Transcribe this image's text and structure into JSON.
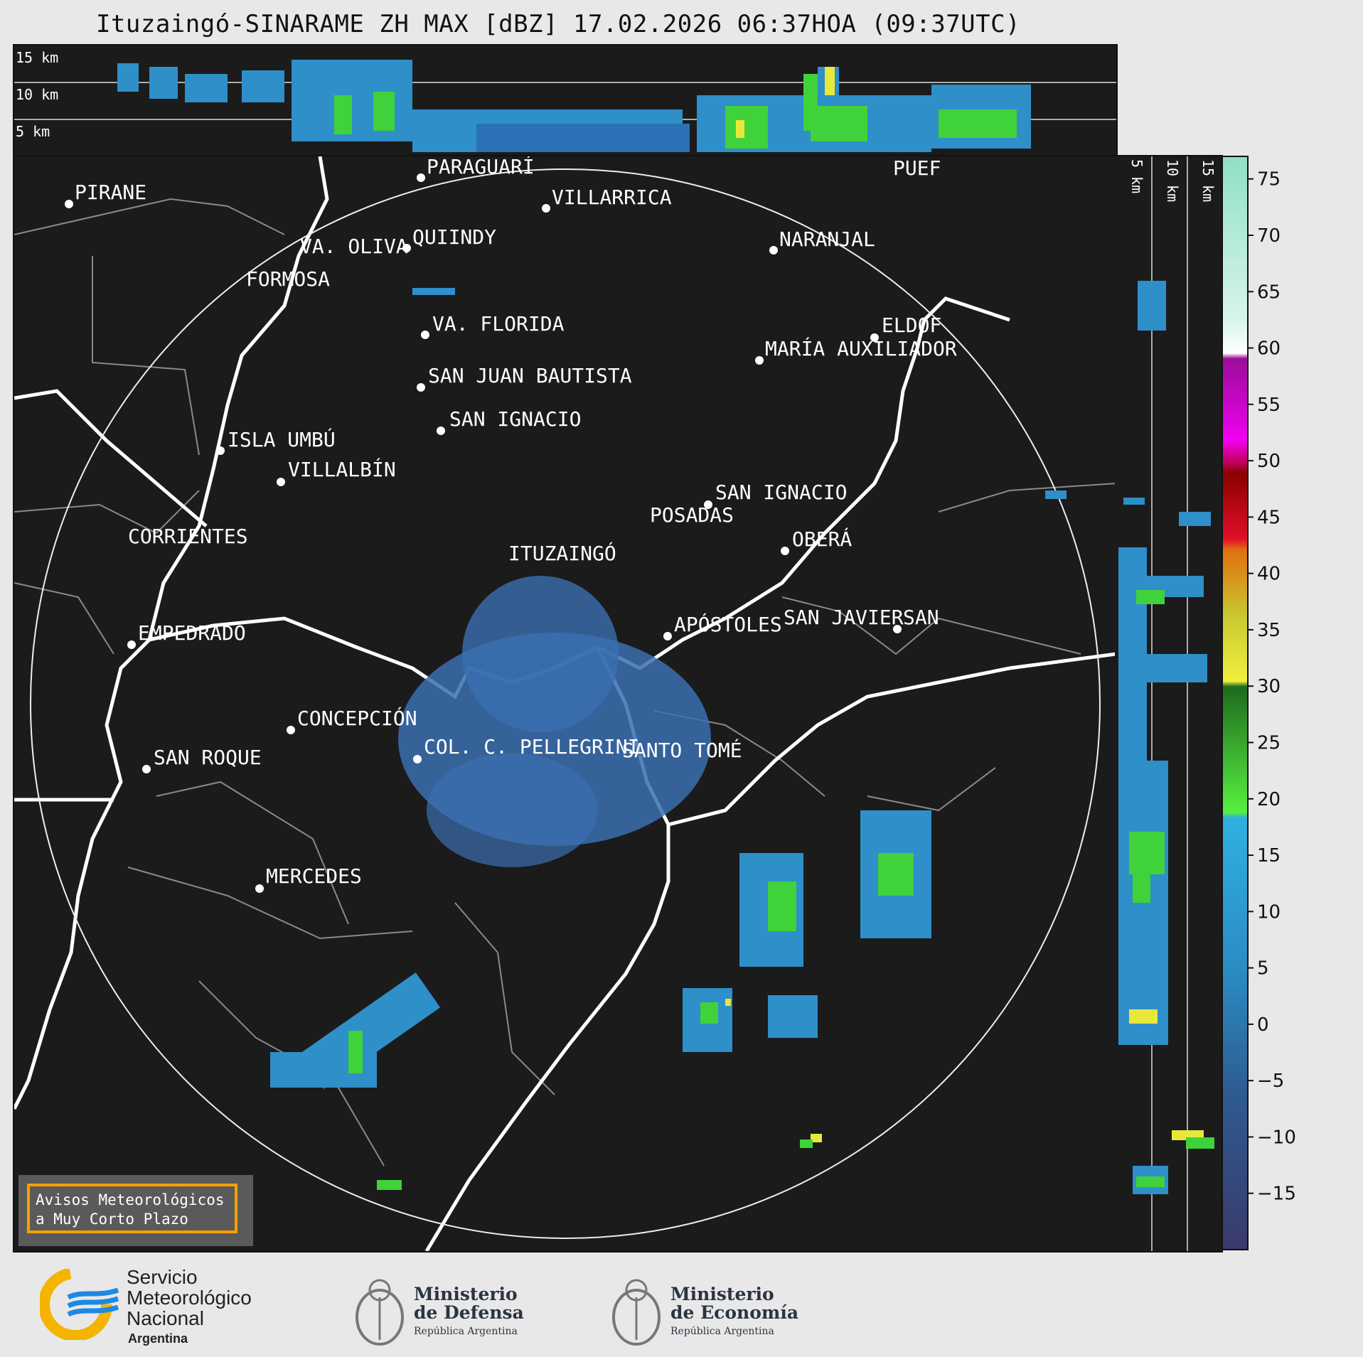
{
  "title": "Ituzaingó-SINARAME ZH MAX [dBZ] 17.02.2026 06:37HOA (09:37UTC)",
  "top_panel": {
    "height_labels": [
      "15 km",
      "10 km",
      "5 km"
    ]
  },
  "side_panel": {
    "height_labels": [
      "5 km",
      "10 km",
      "15 km"
    ]
  },
  "map": {
    "radar_site": "ITUZAINGÓ",
    "cities": [
      {
        "name": "PIRANE"
      },
      {
        "name": "PARAGUARÍ"
      },
      {
        "name": "VILLARRICA"
      },
      {
        "name": "QUIINDY"
      },
      {
        "name": "VA. OLIVA"
      },
      {
        "name": "NARANJAL"
      },
      {
        "name": "FORMOSA"
      },
      {
        "name": "PUEF"
      },
      {
        "name": "VA. FLORIDA"
      },
      {
        "name": "ELDOF"
      },
      {
        "name": "MARÍA AUXILIADOR"
      },
      {
        "name": "SAN JUAN BAUTISTA"
      },
      {
        "name": "SAN IGNACIO"
      },
      {
        "name": "ISLA UMBÚ"
      },
      {
        "name": "VILLALBÍN"
      },
      {
        "name": "SAN IGNACIO"
      },
      {
        "name": "POSADAS"
      },
      {
        "name": "CORRIENTES"
      },
      {
        "name": "OBERÁ"
      },
      {
        "name": "APÓSTOLES"
      },
      {
        "name": "SAN JAVIER"
      },
      {
        "name": "SAN"
      },
      {
        "name": "EMPEDRADO"
      },
      {
        "name": "CONCEPCIÓN"
      },
      {
        "name": "COL. C. PELLEGRINI"
      },
      {
        "name": "SANTO TOMÉ"
      },
      {
        "name": "SAN ROQUE"
      },
      {
        "name": "MERCEDES"
      }
    ]
  },
  "colorbar": {
    "unit": "dBZ",
    "ticks": [
      "75",
      "70",
      "65",
      "60",
      "55",
      "50",
      "45",
      "40",
      "35",
      "30",
      "25",
      "20",
      "15",
      "10",
      "5",
      "0",
      "−5",
      "−10",
      "−15"
    ],
    "range": [
      -20,
      77
    ]
  },
  "alert_box": {
    "line1": "Avisos Meteorológicos",
    "line2": "a Muy Corto Plazo"
  },
  "footer": {
    "smn_line1": "Servicio",
    "smn_line2": "Meteorológico",
    "smn_line3": "Nacional",
    "smn_sub": "Argentina",
    "defensa_line1": "Ministerio",
    "defensa_line2": "de Defensa",
    "defensa_sub": "República Argentina",
    "economia_line1": "Ministerio",
    "economia_line2": "de Economía",
    "economia_sub": "República Argentina"
  },
  "colors": {
    "background": "#1b1b1b",
    "echo_blue": "#2e8fc9",
    "echo_green": "#3fd23a",
    "echo_yellow": "#e8e83a",
    "alert_border": "#f5a000",
    "smn_yellow": "#f4b400",
    "smn_blue": "#1e88e5"
  }
}
